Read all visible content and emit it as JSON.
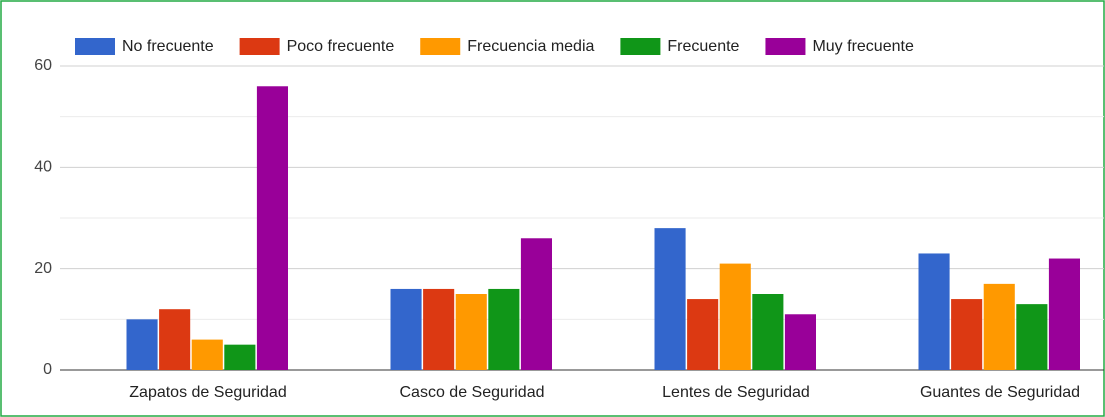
{
  "chart_data": {
    "type": "bar",
    "categories": [
      "Zapatos de Seguridad",
      "Casco de Seguridad",
      "Lentes de Seguridad",
      "Guantes de Seguridad"
    ],
    "series": [
      {
        "name": "No frecuente",
        "color": "#3366cc",
        "values": [
          10,
          16,
          28,
          23
        ]
      },
      {
        "name": "Poco frecuente",
        "color": "#dc3912",
        "values": [
          12,
          16,
          14,
          14
        ]
      },
      {
        "name": "Frecuencia media",
        "color": "#ff9900",
        "values": [
          6,
          15,
          21,
          17
        ]
      },
      {
        "name": "Frecuente",
        "color": "#109618",
        "values": [
          5,
          16,
          15,
          13
        ]
      },
      {
        "name": "Muy frecuente",
        "color": "#990099",
        "values": [
          56,
          26,
          11,
          22
        ]
      }
    ],
    "ylim": [
      0,
      60
    ],
    "yticks": [
      0,
      20,
      40,
      60
    ],
    "minor_yticks": [
      10,
      30,
      50
    ],
    "grid": true,
    "legend": "top"
  }
}
